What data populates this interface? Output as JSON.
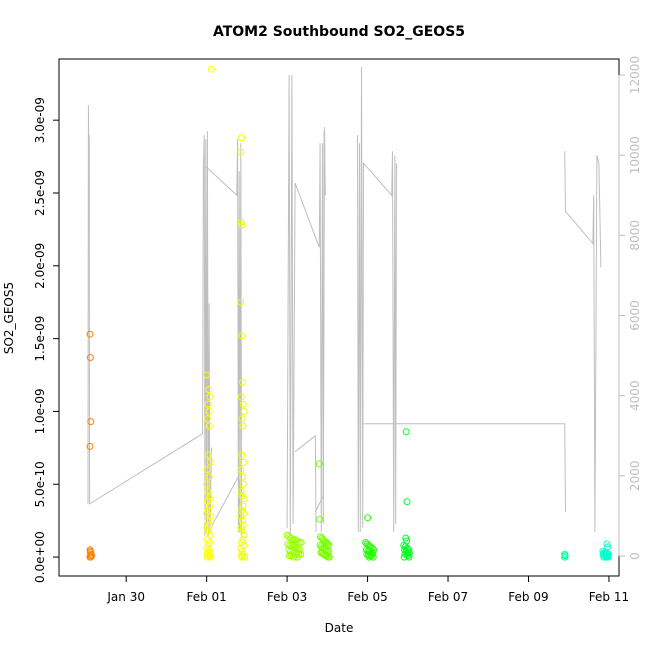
{
  "chart_data": {
    "type": "scatter",
    "title": "ATOM2 Southbound SO2_GEOS5",
    "xlabel": "Date",
    "ylabel": "SO2_GEOS5",
    "x_ticks": [
      {
        "day": 30,
        "label": "Jan 30"
      },
      {
        "day": 32,
        "label": "Feb 01"
      },
      {
        "day": 34,
        "label": "Feb 03"
      },
      {
        "day": 36,
        "label": "Feb 05"
      },
      {
        "day": 38,
        "label": "Feb 07"
      },
      {
        "day": 40,
        "label": "Feb 09"
      },
      {
        "day": 42,
        "label": "Feb 11"
      }
    ],
    "xlim": [
      "Jan 29 00:00",
      "Feb 11 08:00"
    ],
    "y_ticks": [
      {
        "value": 0,
        "label": "0.0e+00"
      },
      {
        "value": 5e-10,
        "label": "5.0e-10"
      },
      {
        "value": 1e-09,
        "label": "1.0e-09"
      },
      {
        "value": 1.5e-09,
        "label": "1.5e-09"
      },
      {
        "value": 2e-09,
        "label": "2.0e-09"
      },
      {
        "value": 2.5e-09,
        "label": "2.5e-09"
      },
      {
        "value": 3e-09,
        "label": "3.0e-09"
      }
    ],
    "ylim": [
      -1.3e-10,
      3.42e-09
    ],
    "y2_ticks": [
      {
        "value": 0,
        "label": "0"
      },
      {
        "value": 2000,
        "label": "2000"
      },
      {
        "value": 4000,
        "label": "4000"
      },
      {
        "value": 6000,
        "label": "6000"
      },
      {
        "value": 8000,
        "label": "8000"
      },
      {
        "value": 10000,
        "label": "10000"
      },
      {
        "value": 12000,
        "label": "12000"
      }
    ],
    "y2lim": [
      -500,
      12400
    ],
    "colors": {
      "c_jan29": "#ff8000",
      "c_feb01": "#ffff00",
      "c_feb02": "#eeff00",
      "c_feb03": "#99ff00",
      "c_feb04": "#77ff00",
      "c_feb05": "#22ff00",
      "c_feb06": "#00ff22",
      "c_feb10": "#00ff99",
      "c_feb11": "#00ffcc",
      "altitude_line": "#bebebe"
    },
    "series": [
      {
        "color": "c_jan29",
        "day": 29.1,
        "points": [
          [
            0.0,
            1.53e-09
          ],
          [
            0.01,
            1.37e-09
          ],
          [
            0.02,
            9.3e-10
          ],
          [
            0.0,
            7.6e-10
          ],
          [
            0.0,
            5e-11
          ],
          [
            0.01,
            3e-11
          ],
          [
            0.02,
            2e-11
          ],
          [
            0.03,
            1e-11
          ],
          [
            0.0,
            0
          ],
          [
            0.02,
            0
          ],
          [
            0.04,
            1e-11
          ],
          [
            0.01,
            4e-11
          ]
        ]
      },
      {
        "color": "c_feb01",
        "day": 32.0,
        "points": [
          [
            0.12,
            3.35e-09
          ],
          [
            0.0,
            1.25e-09
          ],
          [
            0.05,
            1.15e-09
          ],
          [
            0.08,
            1.1e-09
          ],
          [
            0.03,
            1.05e-09
          ],
          [
            0.06,
            1e-09
          ],
          [
            0.02,
            9.5e-10
          ],
          [
            0.07,
            9e-10
          ],
          [
            0.04,
            7e-10
          ],
          [
            0.09,
            6.5e-10
          ],
          [
            0.01,
            6e-10
          ],
          [
            0.06,
            5.5e-10
          ],
          [
            0.0,
            5e-10
          ],
          [
            0.03,
            4.5e-10
          ],
          [
            0.05,
            4.2e-10
          ],
          [
            0.08,
            4e-10
          ],
          [
            0.02,
            3.8e-10
          ],
          [
            0.07,
            3.5e-10
          ],
          [
            0.04,
            3.2e-10
          ],
          [
            0.0,
            3e-10
          ],
          [
            0.09,
            2.8e-10
          ],
          [
            0.03,
            2.5e-10
          ],
          [
            0.06,
            2.2e-10
          ],
          [
            0.01,
            2e-10
          ],
          [
            0.05,
            1.8e-10
          ],
          [
            0.08,
            1.5e-10
          ],
          [
            0.02,
            1.2e-10
          ],
          [
            0.07,
            1e-10
          ],
          [
            0.04,
            8e-11
          ],
          [
            0.0,
            6e-11
          ],
          [
            0.06,
            5e-11
          ],
          [
            0.03,
            4e-11
          ],
          [
            0.09,
            3e-11
          ],
          [
            0.01,
            2e-11
          ],
          [
            0.05,
            1e-11
          ],
          [
            0.08,
            1e-11
          ],
          [
            0.02,
            0
          ],
          [
            0.1,
            0
          ]
        ]
      },
      {
        "color": "c_feb02",
        "day": 32.85,
        "points": [
          [
            0.02,
            2.88e-09
          ],
          [
            0.0,
            2.78e-09
          ],
          [
            0.01,
            2.3e-09
          ],
          [
            0.03,
            2.28e-09
          ],
          [
            0.0,
            1.75e-09
          ],
          [
            0.02,
            1.52e-09
          ],
          [
            0.04,
            1.2e-09
          ],
          [
            0.01,
            1.1e-09
          ],
          [
            0.06,
            1.05e-09
          ],
          [
            0.08,
            1e-09
          ],
          [
            0.03,
            9.5e-10
          ],
          [
            0.05,
            9e-10
          ],
          [
            0.02,
            7e-10
          ],
          [
            0.07,
            6.5e-10
          ],
          [
            0.0,
            6e-10
          ],
          [
            0.04,
            5.5e-10
          ],
          [
            0.06,
            5e-10
          ],
          [
            0.01,
            4.5e-10
          ],
          [
            0.03,
            4.2e-10
          ],
          [
            0.08,
            4e-10
          ],
          [
            0.05,
            3.5e-10
          ],
          [
            0.02,
            3.2e-10
          ],
          [
            0.07,
            3e-10
          ],
          [
            0.0,
            2.8e-10
          ],
          [
            0.04,
            2.5e-10
          ],
          [
            0.06,
            2.2e-10
          ],
          [
            0.01,
            2e-10
          ],
          [
            0.03,
            1.8e-10
          ],
          [
            0.08,
            1.5e-10
          ],
          [
            0.05,
            1.2e-10
          ],
          [
            0.02,
            1e-10
          ],
          [
            0.07,
            8e-11
          ],
          [
            0.0,
            6e-11
          ],
          [
            0.04,
            4e-11
          ],
          [
            0.06,
            2e-11
          ],
          [
            0.01,
            1e-11
          ],
          [
            0.09,
            0
          ],
          [
            0.03,
            0
          ]
        ]
      },
      {
        "color": "c_feb03",
        "day": 34.0,
        "points": [
          [
            0.0,
            1.5e-10
          ],
          [
            0.05,
            1.4e-10
          ],
          [
            0.1,
            1.3e-10
          ],
          [
            0.15,
            1.2e-10
          ],
          [
            0.2,
            1.2e-10
          ],
          [
            0.25,
            1.1e-10
          ],
          [
            0.3,
            1e-10
          ],
          [
            0.35,
            1e-10
          ],
          [
            0.02,
            9e-11
          ],
          [
            0.07,
            8e-11
          ],
          [
            0.12,
            8e-11
          ],
          [
            0.17,
            7e-11
          ],
          [
            0.22,
            6e-11
          ],
          [
            0.27,
            6e-11
          ],
          [
            0.32,
            5e-11
          ],
          [
            0.04,
            5e-11
          ],
          [
            0.09,
            4e-11
          ],
          [
            0.14,
            4e-11
          ],
          [
            0.19,
            3e-11
          ],
          [
            0.24,
            3e-11
          ],
          [
            0.29,
            2e-11
          ],
          [
            0.34,
            2e-11
          ],
          [
            0.06,
            1e-11
          ],
          [
            0.11,
            1e-11
          ],
          [
            0.16,
            0
          ],
          [
            0.26,
            0
          ]
        ]
      },
      {
        "color": "c_feb04",
        "day": 34.8,
        "points": [
          [
            0.0,
            6.4e-10
          ],
          [
            0.01,
            2.6e-10
          ],
          [
            0.03,
            1.4e-10
          ],
          [
            0.06,
            1.3e-10
          ],
          [
            0.09,
            1.2e-10
          ],
          [
            0.12,
            1.1e-10
          ],
          [
            0.15,
            1e-10
          ],
          [
            0.18,
            1e-10
          ],
          [
            0.21,
            9e-11
          ],
          [
            0.24,
            8e-11
          ],
          [
            0.02,
            8e-11
          ],
          [
            0.05,
            7e-11
          ],
          [
            0.08,
            6e-11
          ],
          [
            0.11,
            6e-11
          ],
          [
            0.14,
            5e-11
          ],
          [
            0.17,
            5e-11
          ],
          [
            0.2,
            4e-11
          ],
          [
            0.23,
            4e-11
          ],
          [
            0.04,
            3e-11
          ],
          [
            0.07,
            3e-11
          ],
          [
            0.1,
            2e-11
          ],
          [
            0.13,
            2e-11
          ],
          [
            0.16,
            1e-11
          ],
          [
            0.19,
            1e-11
          ],
          [
            0.22,
            0
          ],
          [
            0.25,
            0
          ]
        ]
      },
      {
        "color": "c_feb05",
        "day": 35.95,
        "points": [
          [
            0.05,
            2.7e-10
          ],
          [
            0.0,
            1e-10
          ],
          [
            0.04,
            9e-11
          ],
          [
            0.08,
            8e-11
          ],
          [
            0.12,
            7e-11
          ],
          [
            0.16,
            6e-11
          ],
          [
            0.2,
            5e-11
          ],
          [
            0.02,
            5e-11
          ],
          [
            0.06,
            4e-11
          ],
          [
            0.1,
            4e-11
          ],
          [
            0.14,
            3e-11
          ],
          [
            0.18,
            3e-11
          ],
          [
            0.03,
            2e-11
          ],
          [
            0.07,
            2e-11
          ],
          [
            0.11,
            1e-11
          ],
          [
            0.15,
            1e-11
          ],
          [
            0.19,
            0
          ],
          [
            0.09,
            0
          ]
        ]
      },
      {
        "color": "c_feb06",
        "day": 36.9,
        "points": [
          [
            0.06,
            8.6e-10
          ],
          [
            0.08,
            3.8e-10
          ],
          [
            0.05,
            1.3e-10
          ],
          [
            0.07,
            1.1e-10
          ],
          [
            0.0,
            8e-11
          ],
          [
            0.04,
            7e-11
          ],
          [
            0.09,
            6e-11
          ],
          [
            0.12,
            5e-11
          ],
          [
            0.02,
            5e-11
          ],
          [
            0.06,
            4e-11
          ],
          [
            0.1,
            3e-11
          ],
          [
            0.14,
            3e-11
          ],
          [
            0.03,
            2e-11
          ],
          [
            0.08,
            2e-11
          ],
          [
            0.11,
            1e-11
          ],
          [
            0.01,
            0
          ],
          [
            0.13,
            0
          ]
        ]
      },
      {
        "color": "c_feb10",
        "day": 40.9,
        "points": [
          [
            0.0,
            2e-11
          ],
          [
            0.01,
            1e-11
          ],
          [
            0.0,
            0
          ]
        ]
      },
      {
        "color": "c_feb11",
        "day": 41.85,
        "points": [
          [
            0.1,
            9e-11
          ],
          [
            0.12,
            7e-11
          ],
          [
            0.0,
            4e-11
          ],
          [
            0.03,
            3e-11
          ],
          [
            0.06,
            3e-11
          ],
          [
            0.09,
            3e-11
          ],
          [
            0.12,
            2e-11
          ],
          [
            0.14,
            2e-11
          ],
          [
            0.01,
            2e-11
          ],
          [
            0.04,
            1e-11
          ],
          [
            0.07,
            1e-11
          ],
          [
            0.1,
            1e-11
          ],
          [
            0.13,
            0
          ],
          [
            0.02,
            0
          ],
          [
            0.08,
            0
          ],
          [
            0.11,
            0
          ]
        ]
      }
    ],
    "altitude_series": {
      "axis": "y2",
      "segments": [
        [
          [
            29.05,
            1300
          ],
          [
            29.06,
            11250
          ],
          [
            29.07,
            9800
          ],
          [
            29.08,
            10500
          ],
          [
            29.09,
            1300
          ],
          [
            31.9,
            3050
          ],
          [
            31.92,
            9750
          ],
          [
            31.94,
            10500
          ],
          [
            31.96,
            500
          ],
          [
            31.98,
            10400
          ],
          [
            32.0,
            600
          ],
          [
            32.02,
            10600
          ],
          [
            32.04,
            500
          ],
          [
            32.06,
            6300
          ],
          [
            32.08,
            600
          ],
          [
            32.12,
            2700
          ]
        ],
        [
          [
            32.0,
            9700
          ],
          [
            32.75,
            9000
          ],
          [
            32.77,
            10400
          ],
          [
            32.79,
            600
          ],
          [
            32.81,
            9600
          ],
          [
            32.83,
            600
          ],
          [
            32.85,
            10300
          ],
          [
            32.87,
            500
          ]
        ],
        [
          [
            32.1,
            700
          ],
          [
            32.8,
            2000
          ],
          [
            32.82,
            600
          ]
        ],
        [
          [
            34.0,
            700
          ],
          [
            34.05,
            12000
          ],
          [
            34.08,
            500
          ],
          [
            34.12,
            12000
          ],
          [
            34.15,
            800
          ],
          [
            34.2,
            9300
          ],
          [
            34.8,
            7700
          ],
          [
            34.82,
            10300
          ],
          [
            34.85,
            600
          ],
          [
            34.88,
            10300
          ],
          [
            34.9,
            800
          ],
          [
            34.93,
            10700
          ],
          [
            34.95,
            9000
          ]
        ],
        [
          [
            34.2,
            2600
          ],
          [
            34.7,
            3000
          ],
          [
            34.72,
            600
          ]
        ],
        [
          [
            34.7,
            1100
          ],
          [
            34.9,
            1500
          ],
          [
            34.92,
            10600
          ]
        ],
        [
          [
            35.75,
            10500
          ],
          [
            35.77,
            600
          ],
          [
            35.8,
            10300
          ],
          [
            35.82,
            600
          ],
          [
            35.85,
            12200
          ],
          [
            35.88,
            700
          ],
          [
            35.9,
            9800
          ],
          [
            36.6,
            9000
          ],
          [
            36.62,
            10100
          ],
          [
            36.65,
            600
          ],
          [
            36.68,
            10000
          ],
          [
            36.7,
            800
          ],
          [
            36.72,
            9800
          ]
        ],
        [
          [
            35.9,
            3300
          ],
          [
            40.9,
            3300
          ],
          [
            40.92,
            1100
          ]
        ],
        [
          [
            40.9,
            10100
          ],
          [
            40.92,
            8600
          ],
          [
            41.6,
            7800
          ],
          [
            41.62,
            9000
          ],
          [
            41.65,
            600
          ],
          [
            41.7,
            10000
          ],
          [
            41.75,
            9800
          ],
          [
            41.8,
            7200
          ]
        ]
      ]
    }
  }
}
